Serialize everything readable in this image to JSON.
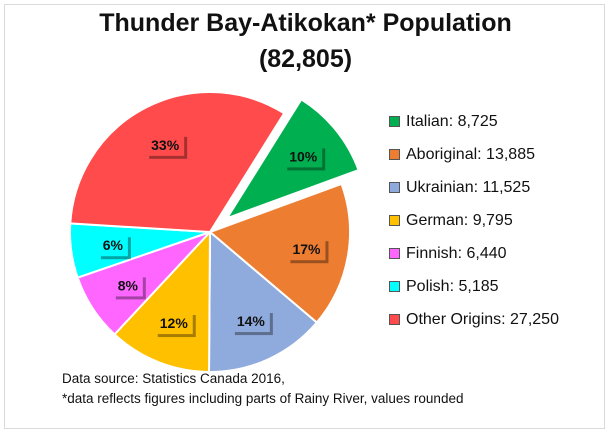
{
  "chart_data": {
    "type": "pie",
    "title": "Thunder Bay-Atikokan* Population",
    "subtitle": "(82,805)",
    "slices": [
      {
        "name": "Italian",
        "value": 8725,
        "display": "8,725",
        "pct": "10%",
        "color": "#00b050",
        "exploded": true
      },
      {
        "name": "Aboriginal",
        "value": 13885,
        "display": "13,885",
        "pct": "17%",
        "color": "#ed7d31",
        "exploded": false
      },
      {
        "name": "Ukrainian",
        "value": 11525,
        "display": "11,525",
        "pct": "14%",
        "color": "#8faadc",
        "exploded": false
      },
      {
        "name": "German",
        "value": 9795,
        "display": "9,795",
        "pct": "12%",
        "color": "#ffc000",
        "exploded": false
      },
      {
        "name": "Finnish",
        "value": 6440,
        "display": "6,440",
        "pct": "8%",
        "color": "#ff66ff",
        "exploded": false
      },
      {
        "name": "Polish",
        "value": 5185,
        "display": "5,185",
        "pct": "6%",
        "color": "#00ffff",
        "exploded": false
      },
      {
        "name": "Other Origins",
        "value": 27250,
        "display": "27,250",
        "pct": "33%",
        "color": "#ff4b4b",
        "exploded": false
      }
    ],
    "legend_position": "right"
  },
  "notes": {
    "source": "Data source: Statistics Canada 2016,",
    "footnote": "*data reflects figures including parts of Rainy River, values rounded"
  }
}
